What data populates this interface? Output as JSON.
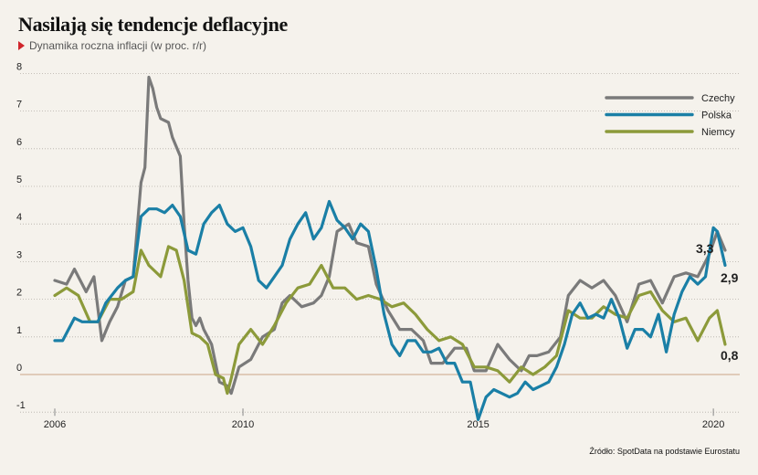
{
  "header": {
    "title": "Nasilają się tendencje deflacyjne",
    "subtitle": "Dynamika roczna inflacji (w proc. r/r)"
  },
  "source": "Źródło: SpotData na podstawie Eurostatu",
  "chart_data": {
    "type": "line",
    "title": "Nasilają się tendencje deflacyjne",
    "subtitle": "Dynamika roczna inflacji (w proc. r/r)",
    "xlabel": "",
    "ylabel": "",
    "ylim": [
      -1,
      8
    ],
    "xlim": [
      "2006-01",
      "2020-04"
    ],
    "yticks": [
      "-1",
      "0",
      "1",
      "2",
      "3",
      "4",
      "5",
      "6",
      "7",
      "8"
    ],
    "xticks": [
      "2006",
      "2010",
      "2015",
      "2020"
    ],
    "grid": "horizontal dotted",
    "legend": "top-right",
    "colors": {
      "Czechy": "#7a7a7a",
      "Polska": "#1a7fa6",
      "Niemcy": "#8c9a3a",
      "zero_line": "#d4b49a",
      "background": "#f5f2ec"
    },
    "series": [
      {
        "name": "Czechy",
        "points": [
          [
            "2006-01",
            2.5
          ],
          [
            "2006-04",
            2.4
          ],
          [
            "2006-06",
            2.8
          ],
          [
            "2006-09",
            2.2
          ],
          [
            "2006-11",
            2.6
          ],
          [
            "2007-01",
            0.9
          ],
          [
            "2007-03",
            1.4
          ],
          [
            "2007-05",
            1.8
          ],
          [
            "2007-07",
            2.5
          ],
          [
            "2007-09",
            2.6
          ],
          [
            "2007-11",
            5.1
          ],
          [
            "2007-12",
            5.5
          ],
          [
            "2008-01",
            7.9
          ],
          [
            "2008-02",
            7.6
          ],
          [
            "2008-03",
            7.1
          ],
          [
            "2008-04",
            6.8
          ],
          [
            "2008-06",
            6.7
          ],
          [
            "2008-07",
            6.3
          ],
          [
            "2008-09",
            5.8
          ],
          [
            "2008-10",
            4.0
          ],
          [
            "2008-11",
            2.5
          ],
          [
            "2008-12",
            1.5
          ],
          [
            "2009-01",
            1.3
          ],
          [
            "2009-02",
            1.5
          ],
          [
            "2009-03",
            1.2
          ],
          [
            "2009-05",
            0.8
          ],
          [
            "2009-06",
            0.3
          ],
          [
            "2009-07",
            -0.2
          ],
          [
            "2009-09",
            -0.3
          ],
          [
            "2009-10",
            -0.5
          ],
          [
            "2009-12",
            0.2
          ],
          [
            "2010-03",
            0.4
          ],
          [
            "2010-06",
            1.0
          ],
          [
            "2010-09",
            1.2
          ],
          [
            "2010-11",
            1.9
          ],
          [
            "2011-01",
            2.1
          ],
          [
            "2011-04",
            1.8
          ],
          [
            "2011-07",
            1.9
          ],
          [
            "2011-09",
            2.1
          ],
          [
            "2011-11",
            2.6
          ],
          [
            "2012-01",
            3.8
          ],
          [
            "2012-04",
            4.0
          ],
          [
            "2012-06",
            3.5
          ],
          [
            "2012-09",
            3.4
          ],
          [
            "2012-11",
            2.4
          ],
          [
            "2013-02",
            1.7
          ],
          [
            "2013-05",
            1.2
          ],
          [
            "2013-08",
            1.2
          ],
          [
            "2013-11",
            0.9
          ],
          [
            "2014-01",
            0.3
          ],
          [
            "2014-04",
            0.3
          ],
          [
            "2014-07",
            0.7
          ],
          [
            "2014-10",
            0.7
          ],
          [
            "2014-12",
            0.1
          ],
          [
            "2015-03",
            0.1
          ],
          [
            "2015-06",
            0.8
          ],
          [
            "2015-09",
            0.4
          ],
          [
            "2015-12",
            0.1
          ],
          [
            "2016-02",
            0.5
          ],
          [
            "2016-04",
            0.5
          ],
          [
            "2016-07",
            0.6
          ],
          [
            "2016-10",
            1.0
          ],
          [
            "2016-12",
            2.1
          ],
          [
            "2017-03",
            2.5
          ],
          [
            "2017-06",
            2.3
          ],
          [
            "2017-09",
            2.5
          ],
          [
            "2017-12",
            2.1
          ],
          [
            "2018-03",
            1.4
          ],
          [
            "2018-06",
            2.4
          ],
          [
            "2018-09",
            2.5
          ],
          [
            "2018-12",
            1.9
          ],
          [
            "2019-03",
            2.6
          ],
          [
            "2019-06",
            2.7
          ],
          [
            "2019-09",
            2.6
          ],
          [
            "2019-12",
            3.2
          ],
          [
            "2020-02",
            3.8
          ],
          [
            "2020-04",
            3.3
          ]
        ]
      },
      {
        "name": "Polska",
        "points": [
          [
            "2006-01",
            0.9
          ],
          [
            "2006-03",
            0.9
          ],
          [
            "2006-06",
            1.5
          ],
          [
            "2006-08",
            1.4
          ],
          [
            "2006-10",
            1.4
          ],
          [
            "2006-12",
            1.4
          ],
          [
            "2007-02",
            1.9
          ],
          [
            "2007-05",
            2.3
          ],
          [
            "2007-07",
            2.5
          ],
          [
            "2007-09",
            2.6
          ],
          [
            "2007-11",
            4.2
          ],
          [
            "2008-01",
            4.4
          ],
          [
            "2008-03",
            4.4
          ],
          [
            "2008-05",
            4.3
          ],
          [
            "2008-07",
            4.5
          ],
          [
            "2008-09",
            4.2
          ],
          [
            "2008-11",
            3.3
          ],
          [
            "2009-01",
            3.2
          ],
          [
            "2009-03",
            4.0
          ],
          [
            "2009-05",
            4.3
          ],
          [
            "2009-07",
            4.5
          ],
          [
            "2009-09",
            4.0
          ],
          [
            "2009-11",
            3.8
          ],
          [
            "2010-01",
            3.9
          ],
          [
            "2010-03",
            3.4
          ],
          [
            "2010-05",
            2.5
          ],
          [
            "2010-07",
            2.3
          ],
          [
            "2010-09",
            2.6
          ],
          [
            "2010-11",
            2.9
          ],
          [
            "2011-01",
            3.6
          ],
          [
            "2011-03",
            4.0
          ],
          [
            "2011-05",
            4.3
          ],
          [
            "2011-07",
            3.6
          ],
          [
            "2011-09",
            3.9
          ],
          [
            "2011-11",
            4.6
          ],
          [
            "2012-01",
            4.1
          ],
          [
            "2012-03",
            3.9
          ],
          [
            "2012-05",
            3.6
          ],
          [
            "2012-07",
            4.0
          ],
          [
            "2012-09",
            3.8
          ],
          [
            "2012-11",
            2.8
          ],
          [
            "2013-01",
            1.6
          ],
          [
            "2013-03",
            0.8
          ],
          [
            "2013-05",
            0.5
          ],
          [
            "2013-07",
            0.9
          ],
          [
            "2013-09",
            0.9
          ],
          [
            "2013-11",
            0.6
          ],
          [
            "2014-01",
            0.6
          ],
          [
            "2014-03",
            0.7
          ],
          [
            "2014-05",
            0.3
          ],
          [
            "2014-07",
            0.3
          ],
          [
            "2014-09",
            -0.2
          ],
          [
            "2014-11",
            -0.2
          ],
          [
            "2015-01",
            -1.2
          ],
          [
            "2015-03",
            -0.6
          ],
          [
            "2015-05",
            -0.4
          ],
          [
            "2015-07",
            -0.5
          ],
          [
            "2015-09",
            -0.6
          ],
          [
            "2015-11",
            -0.5
          ],
          [
            "2016-01",
            -0.2
          ],
          [
            "2016-03",
            -0.4
          ],
          [
            "2016-05",
            -0.3
          ],
          [
            "2016-07",
            -0.2
          ],
          [
            "2016-09",
            0.2
          ],
          [
            "2016-11",
            0.8
          ],
          [
            "2017-01",
            1.6
          ],
          [
            "2017-03",
            1.9
          ],
          [
            "2017-05",
            1.5
          ],
          [
            "2017-07",
            1.6
          ],
          [
            "2017-09",
            1.5
          ],
          [
            "2017-11",
            2.0
          ],
          [
            "2018-01",
            1.5
          ],
          [
            "2018-03",
            0.7
          ],
          [
            "2018-05",
            1.2
          ],
          [
            "2018-07",
            1.2
          ],
          [
            "2018-09",
            1.0
          ],
          [
            "2018-11",
            1.6
          ],
          [
            "2019-01",
            0.6
          ],
          [
            "2019-03",
            1.6
          ],
          [
            "2019-05",
            2.2
          ],
          [
            "2019-07",
            2.6
          ],
          [
            "2019-09",
            2.4
          ],
          [
            "2019-11",
            2.6
          ],
          [
            "2020-01",
            3.9
          ],
          [
            "2020-02",
            3.8
          ],
          [
            "2020-04",
            2.9
          ]
        ]
      },
      {
        "name": "Niemcy",
        "points": [
          [
            "2006-01",
            2.1
          ],
          [
            "2006-04",
            2.3
          ],
          [
            "2006-07",
            2.1
          ],
          [
            "2006-10",
            1.4
          ],
          [
            "2006-12",
            1.4
          ],
          [
            "2007-03",
            2.0
          ],
          [
            "2007-06",
            2.0
          ],
          [
            "2007-09",
            2.2
          ],
          [
            "2007-11",
            3.3
          ],
          [
            "2008-01",
            2.9
          ],
          [
            "2008-04",
            2.6
          ],
          [
            "2008-06",
            3.4
          ],
          [
            "2008-08",
            3.3
          ],
          [
            "2008-10",
            2.5
          ],
          [
            "2008-12",
            1.1
          ],
          [
            "2009-02",
            1.0
          ],
          [
            "2009-04",
            0.8
          ],
          [
            "2009-06",
            0.0
          ],
          [
            "2009-08",
            -0.1
          ],
          [
            "2009-09",
            -0.5
          ],
          [
            "2009-10",
            -0.1
          ],
          [
            "2009-12",
            0.8
          ],
          [
            "2010-03",
            1.2
          ],
          [
            "2010-06",
            0.8
          ],
          [
            "2010-09",
            1.3
          ],
          [
            "2010-12",
            1.9
          ],
          [
            "2011-03",
            2.3
          ],
          [
            "2011-06",
            2.4
          ],
          [
            "2011-09",
            2.9
          ],
          [
            "2011-12",
            2.3
          ],
          [
            "2012-03",
            2.3
          ],
          [
            "2012-06",
            2.0
          ],
          [
            "2012-09",
            2.1
          ],
          [
            "2012-12",
            2.0
          ],
          [
            "2013-03",
            1.8
          ],
          [
            "2013-06",
            1.9
          ],
          [
            "2013-09",
            1.6
          ],
          [
            "2013-12",
            1.2
          ],
          [
            "2014-03",
            0.9
          ],
          [
            "2014-06",
            1.0
          ],
          [
            "2014-09",
            0.8
          ],
          [
            "2014-12",
            0.2
          ],
          [
            "2015-03",
            0.2
          ],
          [
            "2015-06",
            0.1
          ],
          [
            "2015-09",
            -0.2
          ],
          [
            "2015-12",
            0.2
          ],
          [
            "2016-03",
            0.0
          ],
          [
            "2016-06",
            0.2
          ],
          [
            "2016-09",
            0.5
          ],
          [
            "2016-12",
            1.7
          ],
          [
            "2017-03",
            1.5
          ],
          [
            "2017-06",
            1.5
          ],
          [
            "2017-09",
            1.8
          ],
          [
            "2017-12",
            1.6
          ],
          [
            "2018-03",
            1.5
          ],
          [
            "2018-06",
            2.1
          ],
          [
            "2018-09",
            2.2
          ],
          [
            "2018-12",
            1.7
          ],
          [
            "2019-03",
            1.4
          ],
          [
            "2019-06",
            1.5
          ],
          [
            "2019-09",
            0.9
          ],
          [
            "2019-12",
            1.5
          ],
          [
            "2020-02",
            1.7
          ],
          [
            "2020-04",
            0.8
          ]
        ]
      }
    ],
    "end_labels": [
      {
        "series": "Czechy",
        "text": "3,3"
      },
      {
        "series": "Polska",
        "text": "2,9"
      },
      {
        "series": "Niemcy",
        "text": "0,8"
      }
    ]
  }
}
